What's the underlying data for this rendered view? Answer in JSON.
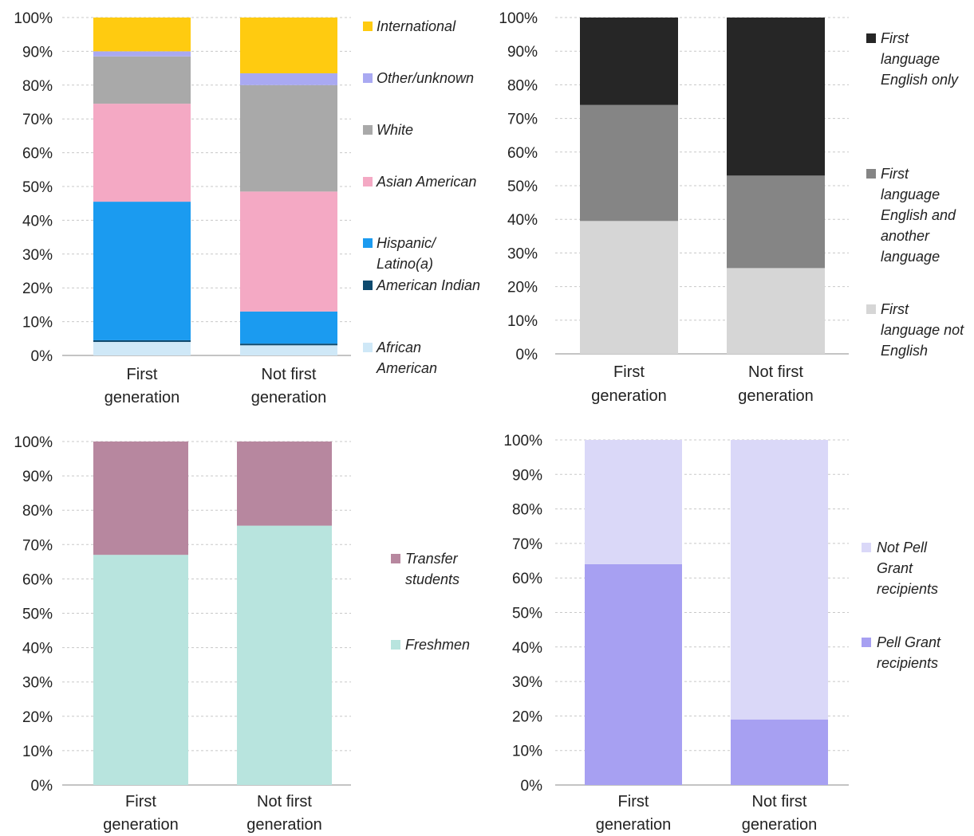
{
  "chart_data": [
    {
      "type": "bar",
      "stacked": true,
      "categories": [
        [
          "First",
          "generation"
        ],
        [
          "Not first",
          "generation"
        ]
      ],
      "y_ticks": [
        "0%",
        "10%",
        "20%",
        "30%",
        "40%",
        "50%",
        "60%",
        "70%",
        "80%",
        "90%",
        "100%"
      ],
      "ylim": [
        0,
        100
      ],
      "grid": true,
      "legend_position": "right",
      "series": [
        {
          "name": [
            "African",
            "American"
          ],
          "color": "#cfe8f7",
          "values": [
            4,
            3
          ]
        },
        {
          "name": [
            "American Indian"
          ],
          "color": "#0e4a6e",
          "values": [
            0.5,
            0.5
          ]
        },
        {
          "name": [
            "Hispanic/",
            "Latino(a)"
          ],
          "color": "#1b9bf0",
          "values": [
            41,
            9.5
          ]
        },
        {
          "name": [
            "Asian American"
          ],
          "color": "#f4a9c4",
          "values": [
            29,
            35.5
          ]
        },
        {
          "name": [
            "White"
          ],
          "color": "#a9a9a9",
          "values": [
            14,
            31.5
          ]
        },
        {
          "name": [
            "Other/unknown"
          ],
          "color": "#a9a9f2",
          "values": [
            1.5,
            3.5
          ]
        },
        {
          "name": [
            "International"
          ],
          "color": "#ffcb10",
          "values": [
            10,
            16.5
          ]
        }
      ]
    },
    {
      "type": "bar",
      "stacked": true,
      "categories": [
        [
          "First",
          "generation"
        ],
        [
          "Not first",
          "generation"
        ]
      ],
      "y_ticks": [
        "0%",
        "10%",
        "20%",
        "30%",
        "40%",
        "50%",
        "60%",
        "70%",
        "80%",
        "90%",
        "100%"
      ],
      "ylim": [
        0,
        100
      ],
      "grid": true,
      "legend_position": "right",
      "series": [
        {
          "name": [
            "First",
            "language not",
            "English"
          ],
          "color": "#d6d6d6",
          "values": [
            39.5,
            25.5
          ]
        },
        {
          "name": [
            "First",
            "language",
            "English and",
            "another",
            "language"
          ],
          "color": "#858585",
          "values": [
            34.5,
            27.5
          ]
        },
        {
          "name": [
            "First",
            "language",
            "English only"
          ],
          "color": "#262626",
          "values": [
            26,
            47
          ]
        }
      ]
    },
    {
      "type": "bar",
      "stacked": true,
      "categories": [
        [
          "First",
          "generation"
        ],
        [
          "Not first",
          "generation"
        ]
      ],
      "y_ticks": [
        "0%",
        "10%",
        "20%",
        "30%",
        "40%",
        "50%",
        "60%",
        "70%",
        "80%",
        "90%",
        "100%"
      ],
      "ylim": [
        0,
        100
      ],
      "grid": true,
      "legend_position": "right",
      "series": [
        {
          "name": [
            "Freshmen"
          ],
          "color": "#b8e4de",
          "values": [
            67,
            75.5
          ]
        },
        {
          "name": [
            "Transfer",
            "students"
          ],
          "color": "#b7879f",
          "values": [
            33,
            24.5
          ]
        }
      ]
    },
    {
      "type": "bar",
      "stacked": true,
      "categories": [
        [
          "First",
          "generation"
        ],
        [
          "Not first",
          "generation"
        ]
      ],
      "y_ticks": [
        "0%",
        "10%",
        "20%",
        "30%",
        "40%",
        "50%",
        "60%",
        "70%",
        "80%",
        "90%",
        "100%"
      ],
      "ylim": [
        0,
        100
      ],
      "grid": true,
      "legend_position": "right",
      "series": [
        {
          "name": [
            "Pell Grant",
            "recipients"
          ],
          "color": "#a7a0f2",
          "values": [
            64,
            19
          ]
        },
        {
          "name": [
            "Not Pell",
            "Grant",
            "recipients"
          ],
          "color": "#dad8f8",
          "values": [
            36,
            81
          ]
        }
      ]
    }
  ]
}
